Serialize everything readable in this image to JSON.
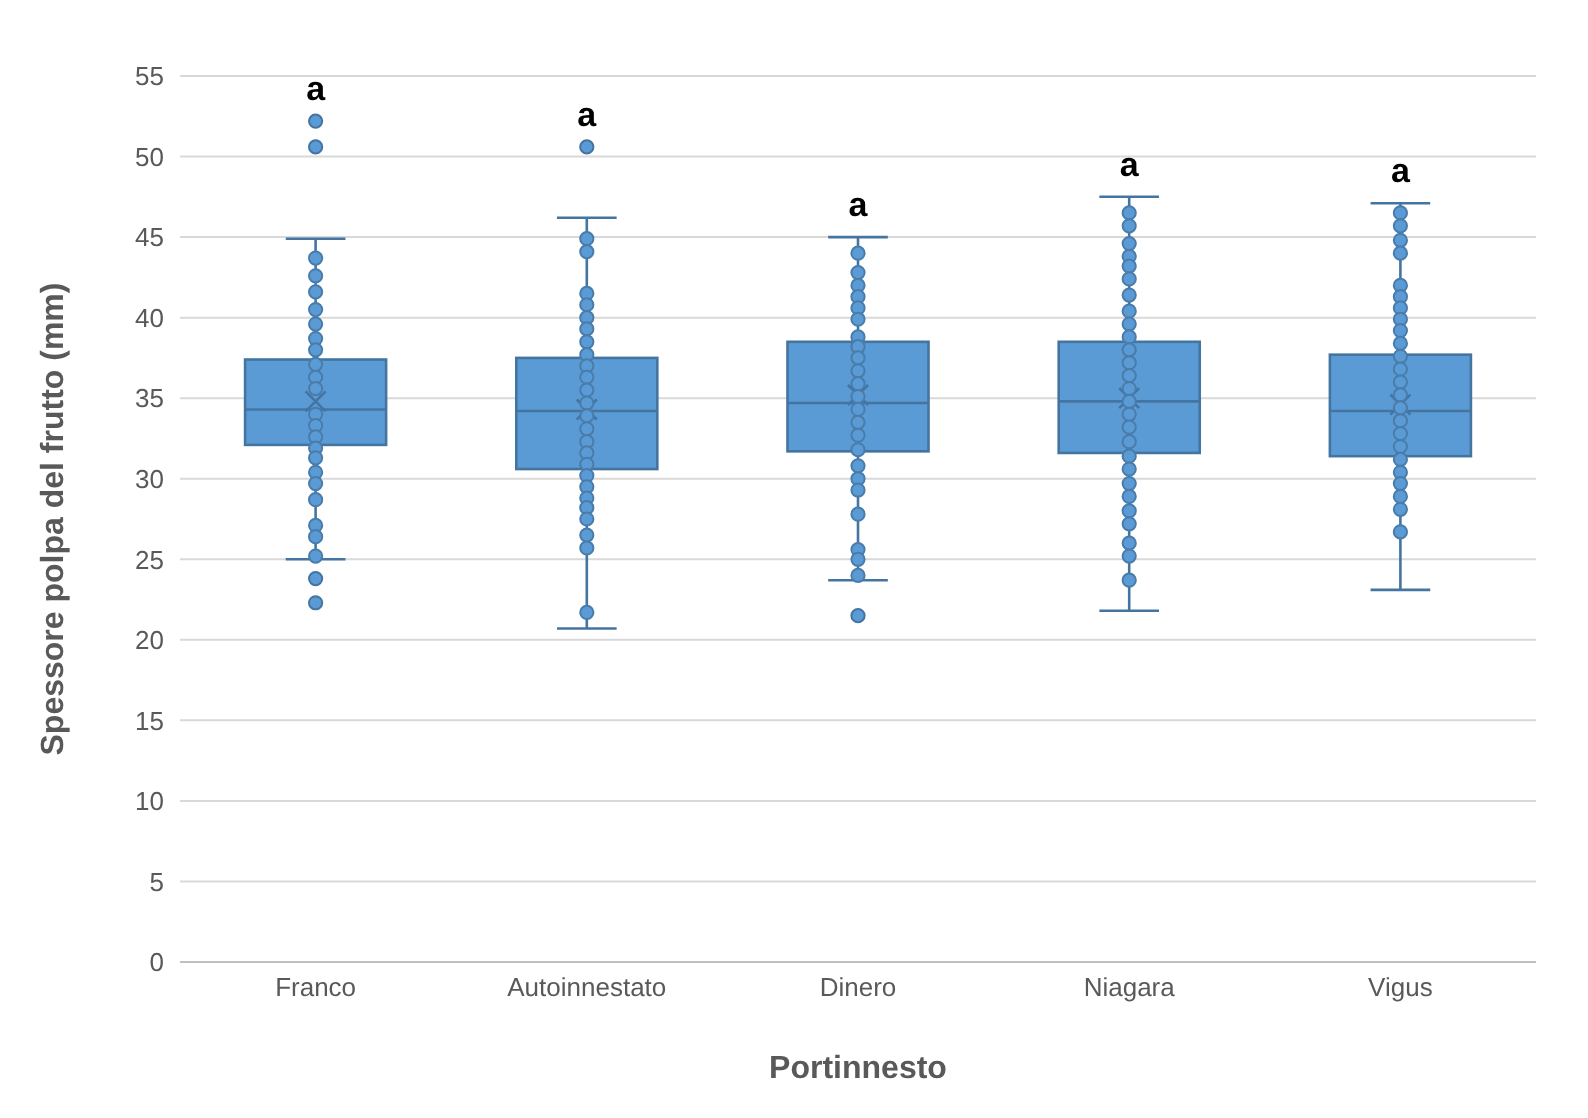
{
  "chart_data": {
    "type": "box",
    "xlabel": "Portinnesto",
    "ylabel": "Spessore polpa del frutto (mm)",
    "categories": [
      "Franco",
      "Autoinnestato",
      "Dinero",
      "Niagara",
      "Vigus"
    ],
    "ylim": [
      0,
      55
    ],
    "yticks": [
      0,
      5,
      10,
      15,
      20,
      25,
      30,
      35,
      40,
      45,
      50,
      55
    ],
    "grid": "y",
    "marker": "circle",
    "series": [
      {
        "color": "#5b9bd5",
        "boxes": [
          {
            "low": 25.0,
            "q1": 32.1,
            "median": 34.3,
            "q3": 37.4,
            "high": 44.9,
            "mean": 34.8,
            "outliers": [
              52.2,
              50.6,
              23.8,
              22.3
            ]
          },
          {
            "low": 20.7,
            "q1": 30.6,
            "median": 34.2,
            "q3": 37.5,
            "high": 46.2,
            "mean": 34.3,
            "outliers": [
              50.6
            ]
          },
          {
            "low": 23.7,
            "q1": 31.7,
            "median": 34.7,
            "q3": 38.5,
            "high": 45.0,
            "mean": 35.2,
            "outliers": [
              21.5
            ]
          },
          {
            "low": 21.8,
            "q1": 31.6,
            "median": 34.8,
            "q3": 38.5,
            "high": 47.5,
            "mean": 35.0
          },
          {
            "low": 23.1,
            "q1": 31.4,
            "median": 34.2,
            "q3": 37.7,
            "high": 47.1,
            "mean": 34.6
          }
        ]
      },
      {
        "type": "scatter",
        "color": "#5b9bd5",
        "x": [
          "Franco",
          "Franco",
          "Franco",
          "Franco",
          "Franco",
          "Franco",
          "Franco",
          "Franco",
          "Franco",
          "Franco",
          "Franco",
          "Franco",
          "Franco",
          "Franco",
          "Franco",
          "Franco",
          "Franco",
          "Franco",
          "Franco",
          "Franco",
          "Franco",
          "Autoinnestato",
          "Autoinnestato",
          "Autoinnestato",
          "Autoinnestato",
          "Autoinnestato",
          "Autoinnestato",
          "Autoinnestato",
          "Autoinnestato",
          "Autoinnestato",
          "Autoinnestato",
          "Autoinnestato",
          "Autoinnestato",
          "Autoinnestato",
          "Autoinnestato",
          "Autoinnestato",
          "Autoinnestato",
          "Autoinnestato",
          "Autoinnestato",
          "Autoinnestato",
          "Autoinnestato",
          "Autoinnestato",
          "Autoinnestato",
          "Autoinnestato",
          "Autoinnestato",
          "Autoinnestato",
          "Dinero",
          "Dinero",
          "Dinero",
          "Dinero",
          "Dinero",
          "Dinero",
          "Dinero",
          "Dinero",
          "Dinero",
          "Dinero",
          "Dinero",
          "Dinero",
          "Dinero",
          "Dinero",
          "Dinero",
          "Dinero",
          "Dinero",
          "Dinero",
          "Dinero",
          "Dinero",
          "Dinero",
          "Dinero",
          "Dinero",
          "Niagara",
          "Niagara",
          "Niagara",
          "Niagara",
          "Niagara",
          "Niagara",
          "Niagara",
          "Niagara",
          "Niagara",
          "Niagara",
          "Niagara",
          "Niagara",
          "Niagara",
          "Niagara",
          "Niagara",
          "Niagara",
          "Niagara",
          "Niagara",
          "Niagara",
          "Niagara",
          "Niagara",
          "Niagara",
          "Niagara",
          "Niagara",
          "Niagara",
          "Niagara",
          "Niagara",
          "Vigus",
          "Vigus",
          "Vigus",
          "Vigus",
          "Vigus",
          "Vigus",
          "Vigus",
          "Vigus",
          "Vigus",
          "Vigus",
          "Vigus",
          "Vigus",
          "Vigus",
          "Vigus",
          "Vigus",
          "Vigus",
          "Vigus",
          "Vigus",
          "Vigus",
          "Vigus",
          "Vigus",
          "Vigus",
          "Vigus",
          "Vigus"
        ],
        "values": [
          43.7,
          42.6,
          41.6,
          40.5,
          39.6,
          38.7,
          38.0,
          37.1,
          36.3,
          35.6,
          34.0,
          33.3,
          32.6,
          31.9,
          31.3,
          30.4,
          29.7,
          28.7,
          27.1,
          26.4,
          25.2,
          44.9,
          44.1,
          41.5,
          40.8,
          40.0,
          39.3,
          38.5,
          37.7,
          37.0,
          36.3,
          35.5,
          34.7,
          33.9,
          33.1,
          32.3,
          31.6,
          30.9,
          30.2,
          29.5,
          28.8,
          28.2,
          27.5,
          26.5,
          25.7,
          21.7,
          44.0,
          42.8,
          42.0,
          41.3,
          40.6,
          39.9,
          38.8,
          38.2,
          37.5,
          36.7,
          35.9,
          35.1,
          34.3,
          33.5,
          32.7,
          31.8,
          30.8,
          30.0,
          29.3,
          27.8,
          25.6,
          25.0,
          24.0,
          46.5,
          45.7,
          44.6,
          43.8,
          43.2,
          42.4,
          41.4,
          40.4,
          39.6,
          38.8,
          38.0,
          37.2,
          36.4,
          35.6,
          34.8,
          34.0,
          33.2,
          32.3,
          31.4,
          30.6,
          29.7,
          28.9,
          28.0,
          27.2,
          26.0,
          25.2,
          23.7,
          46.5,
          45.7,
          44.8,
          44.0,
          42.0,
          41.3,
          40.6,
          39.9,
          39.2,
          38.4,
          37.6,
          36.8,
          36.0,
          35.2,
          34.4,
          33.6,
          32.8,
          32.0,
          31.2,
          30.4,
          29.7,
          28.9,
          28.1,
          26.7
        ]
      }
    ],
    "annotations": [
      "a",
      "a",
      "a",
      "a",
      "a"
    ]
  }
}
